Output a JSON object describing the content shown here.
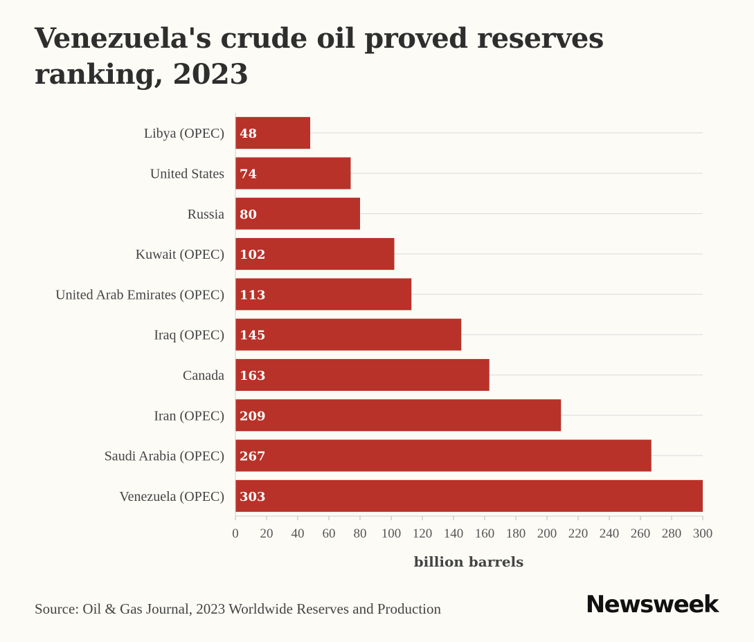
{
  "title": "Venezuela's crude oil proved reserves ranking, 2023",
  "source": "Source: Oil & Gas Journal, 2023 Worldwide Reserves and Production",
  "brand": "Newsweek",
  "colors": {
    "bar": "#b83229",
    "grid": "#e4e4e4",
    "background": "#fcfbf6"
  },
  "chart_data": {
    "type": "bar",
    "orientation": "horizontal",
    "categories": [
      "Libya (OPEC)",
      "United States",
      "Russia",
      "Kuwait (OPEC)",
      "United Arab Emirates (OPEC)",
      "Iraq (OPEC)",
      "Canada",
      "Iran (OPEC)",
      "Saudi Arabia (OPEC)",
      "Venezuela (OPEC)"
    ],
    "values": [
      48,
      74,
      80,
      102,
      113,
      145,
      163,
      209,
      267,
      303
    ],
    "xlabel": "billion barrels",
    "ylabel": "",
    "xlim": [
      0,
      300
    ],
    "xticks": [
      0,
      20,
      40,
      60,
      80,
      100,
      120,
      140,
      160,
      180,
      200,
      220,
      240,
      260,
      280,
      300
    ],
    "grid": true
  }
}
